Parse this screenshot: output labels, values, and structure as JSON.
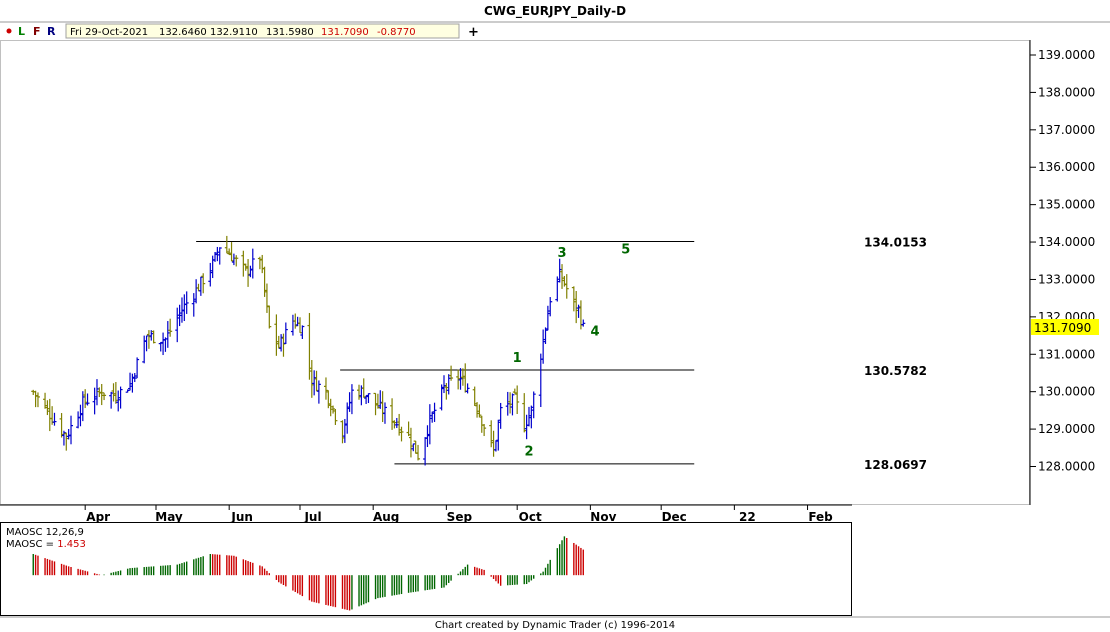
{
  "title": "CWG_EURJPY_Daily-D",
  "toolbar": {
    "dot_color": "#cc0000",
    "buttons": [
      "L",
      "F",
      "R"
    ],
    "button_colors": [
      "#008000",
      "#800000",
      "#000080"
    ],
    "date": "Fri 29-Oct-2021",
    "open": "132.6460",
    "high": "132.9110",
    "low": "131.5980",
    "close": "131.7090",
    "change": "-0.8770",
    "plus_icon": "plus-icon"
  },
  "footer": "Chart created by Dynamic Trader  (c) 1996-2014",
  "chart_data": [
    {
      "type": "ohlc",
      "ylim": [
        127.4,
        139.4
      ],
      "y_ticks": [
        "128.0000",
        "129.0000",
        "130.0000",
        "131.0000",
        "132.0000",
        "133.0000",
        "134.0000",
        "135.0000",
        "136.0000",
        "137.0000",
        "138.0000",
        "139.0000"
      ],
      "x_ticks": [
        "Apr",
        "May",
        "Jun",
        "Jul",
        "Aug",
        "Sep",
        "Oct",
        "Nov",
        "Dec",
        "22",
        "Feb"
      ],
      "last_price": "131.7090",
      "last_price_color": "#ffff00",
      "up_color": "#0000cc",
      "down_color": "#808000",
      "levels": [
        {
          "value": 134.0153,
          "label": "134.0153"
        },
        {
          "value": 130.5782,
          "label": "130.5782"
        },
        {
          "value": 128.0697,
          "label": "128.0697"
        }
      ],
      "wave_labels": [
        {
          "text": "1",
          "date": "2021-10-01",
          "price": 130.8
        },
        {
          "text": "2",
          "date": "2021-10-06",
          "price": 128.3
        },
        {
          "text": "3",
          "date": "2021-10-20",
          "price": 133.6
        },
        {
          "text": "4",
          "date": "2021-11-03",
          "price": 131.5
        },
        {
          "text": "5",
          "date": "2021-11-16",
          "price": 133.7
        }
      ],
      "wave_label_color": "#006600",
      "series_anchors": [
        [
          "2021-03-10",
          130.0
        ],
        [
          "2021-03-24",
          128.8
        ],
        [
          "2021-03-31",
          129.7
        ],
        [
          "2021-04-08",
          130.0
        ],
        [
          "2021-04-14",
          129.9
        ],
        [
          "2021-04-20",
          130.2
        ],
        [
          "2021-04-27",
          131.5
        ],
        [
          "2021-05-05",
          131.4
        ],
        [
          "2021-05-12",
          132.2
        ],
        [
          "2021-05-19",
          132.8
        ],
        [
          "2021-05-25",
          133.4
        ],
        [
          "2021-05-28",
          133.9
        ],
        [
          "2021-06-01",
          133.7
        ],
        [
          "2021-06-08",
          133.2
        ],
        [
          "2021-06-14",
          133.6
        ],
        [
          "2021-06-18",
          131.7
        ],
        [
          "2021-06-22",
          131.2
        ],
        [
          "2021-06-28",
          131.9
        ],
        [
          "2021-07-02",
          131.7
        ],
        [
          "2021-07-06",
          130.3
        ],
        [
          "2021-07-12",
          130.0
        ],
        [
          "2021-07-19",
          128.9
        ],
        [
          "2021-07-23",
          130.0
        ],
        [
          "2021-07-28",
          130.0
        ],
        [
          "2021-08-03",
          129.6
        ],
        [
          "2021-08-09",
          129.3
        ],
        [
          "2021-08-16",
          128.8
        ],
        [
          "2021-08-20",
          128.3
        ],
        [
          "2021-08-25",
          129.2
        ],
        [
          "2021-08-31",
          130.1
        ],
        [
          "2021-09-06",
          130.4
        ],
        [
          "2021-09-10",
          130.1
        ],
        [
          "2021-09-14",
          129.6
        ],
        [
          "2021-09-21",
          128.4
        ],
        [
          "2021-09-24",
          129.5
        ],
        [
          "2021-09-30",
          129.8
        ],
        [
          "2021-10-04",
          129.1
        ],
        [
          "2021-10-07",
          129.5
        ],
        [
          "2021-10-11",
          131.0
        ],
        [
          "2021-10-15",
          132.5
        ],
        [
          "2021-10-19",
          133.1
        ],
        [
          "2021-10-21",
          132.9
        ],
        [
          "2021-10-25",
          132.3
        ],
        [
          "2021-10-27",
          132.2
        ],
        [
          "2021-10-29",
          131.7
        ]
      ]
    },
    {
      "type": "histogram",
      "label_line1": "MAOSC 12,26,9",
      "label_line2_prefix": "MAOSC = ",
      "label_line2_value": "1.453",
      "value_color": "#cc0000",
      "pos_up_color": "#006600",
      "pos_down_color": "#cc0000",
      "ylim": [
        -2.2,
        2.9
      ],
      "anchors": [
        [
          "2021-03-10",
          1.2
        ],
        [
          "2021-03-25",
          0.5
        ],
        [
          "2021-04-08",
          0.0
        ],
        [
          "2021-04-20",
          0.4
        ],
        [
          "2021-05-10",
          0.6
        ],
        [
          "2021-05-24",
          1.2
        ],
        [
          "2021-06-03",
          1.1
        ],
        [
          "2021-06-15",
          0.5
        ],
        [
          "2021-06-22",
          -0.4
        ],
        [
          "2021-07-06",
          -1.5
        ],
        [
          "2021-07-22",
          -2.0
        ],
        [
          "2021-08-03",
          -1.3
        ],
        [
          "2021-08-16",
          -1.0
        ],
        [
          "2021-08-31",
          -0.7
        ],
        [
          "2021-09-10",
          0.6
        ],
        [
          "2021-09-17",
          0.3
        ],
        [
          "2021-09-24",
          -0.6
        ],
        [
          "2021-10-05",
          -0.5
        ],
        [
          "2021-10-12",
          0.2
        ],
        [
          "2021-10-21",
          2.2
        ],
        [
          "2021-10-29",
          1.45
        ]
      ]
    }
  ]
}
